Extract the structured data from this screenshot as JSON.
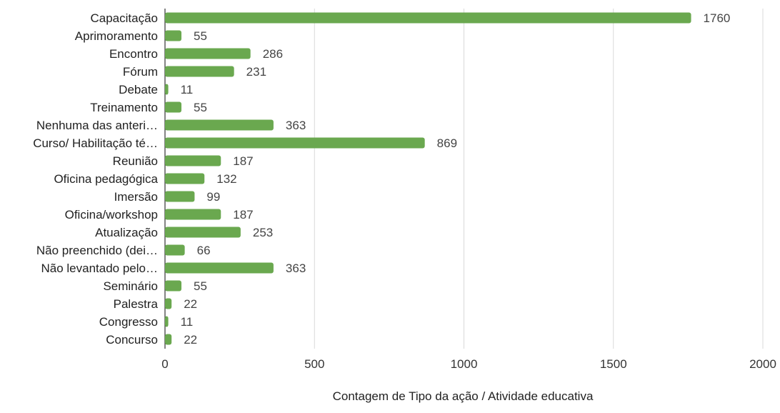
{
  "chart_data": {
    "type": "bar",
    "orientation": "horizontal",
    "categories": [
      "Capacitação",
      "Aprimoramento",
      "Encontro",
      "Fórum",
      "Debate",
      "Treinamento",
      "Nenhuma das anteri…",
      "Curso/ Habilitação té…",
      "Reunião",
      "Oficina pedagógica",
      "Imersão",
      "Oficina/workshop",
      "Atualização",
      "Não preenchido (dei…",
      "Não levantado pelo…",
      "Seminário",
      "Palestra",
      "Congresso",
      "Concurso"
    ],
    "values": [
      1760,
      55,
      286,
      231,
      11,
      55,
      363,
      869,
      187,
      132,
      99,
      187,
      253,
      66,
      363,
      55,
      22,
      11,
      22
    ],
    "xlabel": "Contagem de Tipo da ação / Atividade educativa",
    "ylabel": "",
    "xlim": [
      0,
      2000
    ],
    "xticks": [
      0,
      500,
      1000,
      1500,
      2000
    ],
    "grid": true,
    "legend": "none",
    "bar_color": "#6aa84f",
    "gridline_color": "#d9d9d9"
  }
}
